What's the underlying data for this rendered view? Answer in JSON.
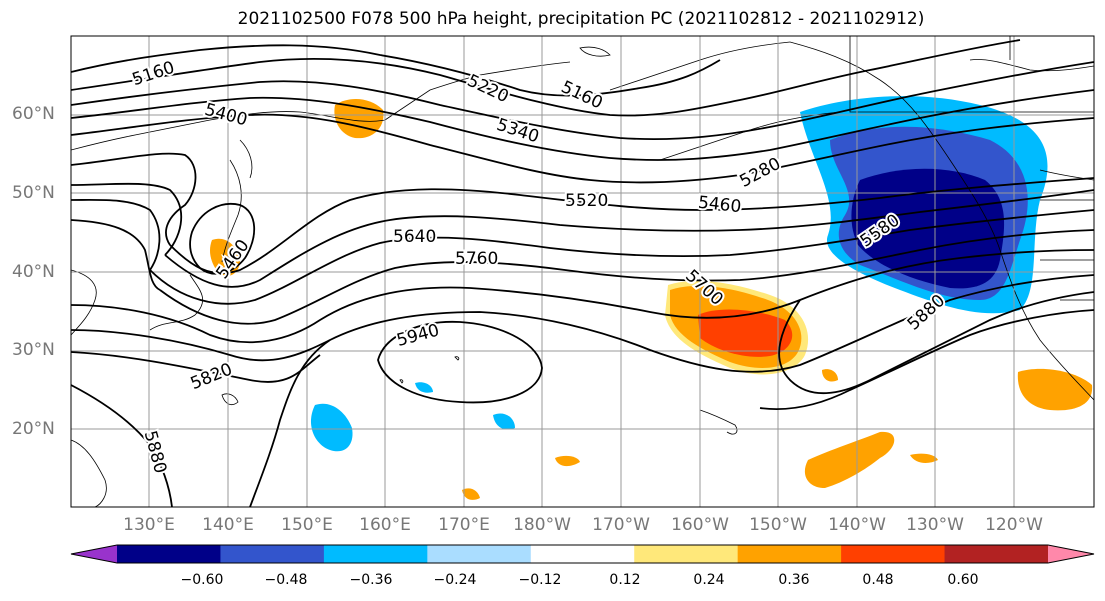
{
  "title": "2021102500 F078 500 hPa height, precipitation PC (2021102812 - 2021102912)",
  "lat_labels": [
    "60°N",
    "50°N",
    "40°N",
    "30°N",
    "20°N"
  ],
  "lon_labels": [
    "130°E",
    "140°E",
    "150°E",
    "160°E",
    "170°E",
    "180°W",
    "170°W",
    "160°W",
    "150°W",
    "140°W",
    "130°W",
    "120°W"
  ],
  "contour_labels": [
    {
      "text": "5160"
    },
    {
      "text": "5220"
    },
    {
      "text": "5160"
    },
    {
      "text": "5400"
    },
    {
      "text": "5340"
    },
    {
      "text": "5280"
    },
    {
      "text": "5520"
    },
    {
      "text": "5460"
    },
    {
      "text": "5640"
    },
    {
      "text": "5760"
    },
    {
      "text": "5580"
    },
    {
      "text": "5700"
    },
    {
      "text": "5880"
    },
    {
      "text": "5940"
    },
    {
      "text": "5820"
    },
    {
      "text": "5880"
    },
    {
      "text": "5460"
    }
  ],
  "colorbar": {
    "colors": [
      "#9933cc",
      "#000088",
      "#3355cc",
      "#00bbff",
      "#aaddff",
      "#ffffff",
      "#ffe87a",
      "#ffa200",
      "#ff4000",
      "#b22222",
      "#ff88aa"
    ],
    "ticks": [
      "−0.60",
      "−0.48",
      "−0.36",
      "−0.24",
      "−0.12",
      "0.12",
      "0.24",
      "0.36",
      "0.48",
      "0.60"
    ]
  }
}
